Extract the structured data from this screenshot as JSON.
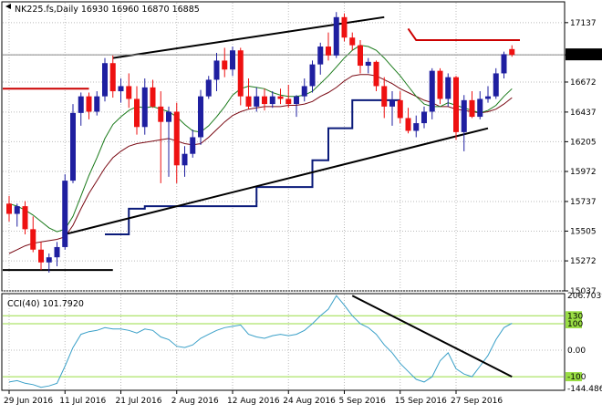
{
  "window": {
    "symbol_line": "NK225.fs,Daily  16930 16960 16870 16885",
    "timeframe": "Daily"
  },
  "price_axis": {
    "ticks": [
      "17137",
      "16885",
      "16672",
      "16437",
      "16205",
      "15972",
      "15737",
      "15505",
      "15272",
      "15037"
    ],
    "current_price_label": "16885"
  },
  "time_axis": {
    "labels": [
      "29 Jun 2016",
      "11 Jul 2016",
      "21 Jul 2016",
      "2 Aug 2016",
      "12 Aug 2016",
      "24 Aug 2016",
      "5 Sep 2016",
      "15 Sep 2016",
      "27 Sep 2016"
    ]
  },
  "indicator": {
    "title": "CCI(40) 101.7920",
    "ticks": [
      "206.7039",
      "130",
      "100",
      "0.00",
      "-100",
      "-144.486"
    ]
  },
  "colors": {
    "bull": "#1f1fa0",
    "bear": "#ee1111",
    "cci_line": "#3aa0c8",
    "level_line": "#99dd44",
    "slow_ma": "#7a0a14",
    "mid_ma": "#1a7a1a",
    "trail_stop": "#0a1a7a",
    "trend_line": "#000000",
    "resistance": "#cc0000"
  },
  "chart_data": {
    "type": "candlestick",
    "y_range": [
      15037,
      17300
    ],
    "candles": [
      [
        15720,
        15780,
        15580,
        15640
      ],
      [
        15640,
        15720,
        15540,
        15700
      ],
      [
        15700,
        15740,
        15480,
        15520
      ],
      [
        15520,
        15620,
        15340,
        15360
      ],
      [
        15360,
        15420,
        15200,
        15260
      ],
      [
        15260,
        15330,
        15180,
        15300
      ],
      [
        15300,
        15420,
        15230,
        15380
      ],
      [
        15380,
        15950,
        15360,
        15900
      ],
      [
        15900,
        16500,
        15880,
        16430
      ],
      [
        16430,
        16590,
        16330,
        16560
      ],
      [
        16560,
        16590,
        16380,
        16440
      ],
      [
        16440,
        16600,
        16410,
        16560
      ],
      [
        16560,
        16860,
        16520,
        16820
      ],
      [
        16820,
        16880,
        16550,
        16600
      ],
      [
        16600,
        16700,
        16510,
        16640
      ],
      [
        16640,
        16740,
        16470,
        16540
      ],
      [
        16540,
        16640,
        16260,
        16320
      ],
      [
        16320,
        16700,
        16260,
        16630
      ],
      [
        16630,
        16690,
        16470,
        16480
      ],
      [
        16480,
        16600,
        15880,
        16360
      ],
      [
        16360,
        16480,
        15930,
        16440
      ],
      [
        16440,
        16510,
        15880,
        16020
      ],
      [
        16020,
        16170,
        15930,
        16110
      ],
      [
        16110,
        16300,
        16080,
        16240
      ],
      [
        16240,
        16610,
        16180,
        16560
      ],
      [
        16560,
        16720,
        16540,
        16690
      ],
      [
        16690,
        16900,
        16600,
        16840
      ],
      [
        16840,
        16940,
        16710,
        16770
      ],
      [
        16770,
        16950,
        16720,
        16920
      ],
      [
        16920,
        16940,
        16490,
        16560
      ],
      [
        16560,
        16700,
        16460,
        16480
      ],
      [
        16480,
        16630,
        16440,
        16560
      ],
      [
        16560,
        16620,
        16450,
        16500
      ],
      [
        16500,
        16600,
        16470,
        16560
      ],
      [
        16560,
        16620,
        16500,
        16540
      ],
      [
        16540,
        16650,
        16470,
        16500
      ],
      [
        16500,
        16570,
        16400,
        16560
      ],
      [
        16560,
        16700,
        16520,
        16640
      ],
      [
        16640,
        16840,
        16590,
        16810
      ],
      [
        16810,
        16980,
        16730,
        16950
      ],
      [
        16950,
        17060,
        16840,
        16880
      ],
      [
        16880,
        17220,
        16860,
        17180
      ],
      [
        17180,
        17210,
        16990,
        17020
      ],
      [
        17020,
        17060,
        16920,
        16960
      ],
      [
        16960,
        17000,
        16740,
        16800
      ],
      [
        16800,
        16860,
        16740,
        16830
      ],
      [
        16830,
        16840,
        16600,
        16640
      ],
      [
        16640,
        16710,
        16390,
        16480
      ],
      [
        16480,
        16600,
        16330,
        16530
      ],
      [
        16530,
        16600,
        16350,
        16390
      ],
      [
        16390,
        16470,
        16270,
        16290
      ],
      [
        16290,
        16410,
        16240,
        16350
      ],
      [
        16350,
        16480,
        16310,
        16440
      ],
      [
        16440,
        16780,
        16380,
        16760
      ],
      [
        16760,
        16780,
        16500,
        16540
      ],
      [
        16540,
        16740,
        16480,
        16710
      ],
      [
        16710,
        16720,
        16220,
        16280
      ],
      [
        16280,
        16570,
        16130,
        16530
      ],
      [
        16530,
        16600,
        16390,
        16400
      ],
      [
        16400,
        16600,
        16380,
        16540
      ],
      [
        16540,
        16640,
        16510,
        16560
      ],
      [
        16560,
        16780,
        16540,
        16740
      ],
      [
        16740,
        16910,
        16700,
        16890
      ],
      [
        16930,
        16960,
        16870,
        16885
      ]
    ],
    "slow_ma": [
      15330,
      15360,
      15390,
      15410,
      15420,
      15430,
      15440,
      15460,
      15550,
      15680,
      15800,
      15900,
      16000,
      16080,
      16130,
      16170,
      16190,
      16200,
      16210,
      16220,
      16230,
      16210,
      16190,
      16180,
      16190,
      16240,
      16300,
      16360,
      16410,
      16440,
      16460,
      16470,
      16480,
      16480,
      16480,
      16490,
      16490,
      16500,
      16520,
      16560,
      16590,
      16630,
      16680,
      16720,
      16730,
      16730,
      16720,
      16690,
      16660,
      16620,
      16590,
      16560,
      16530,
      16510,
      16480,
      16480,
      16460,
      16450,
      16440,
      16430,
      16440,
      16460,
      16500,
      16550
    ],
    "mid_ma": [
      15720,
      15700,
      15670,
      15630,
      15580,
      15530,
      15500,
      15520,
      15620,
      15780,
      15940,
      16080,
      16230,
      16340,
      16400,
      16450,
      16480,
      16470,
      16480,
      16460,
      16440,
      16400,
      16340,
      16290,
      16280,
      16330,
      16400,
      16480,
      16570,
      16620,
      16640,
      16630,
      16620,
      16590,
      16570,
      16560,
      16560,
      16570,
      16600,
      16660,
      16720,
      16790,
      16860,
      16920,
      16960,
      16950,
      16920,
      16860,
      16790,
      16720,
      16640,
      16560,
      16500,
      16480,
      16480,
      16510,
      16490,
      16470,
      16450,
      16430,
      16450,
      16490,
      16560,
      16620
    ],
    "cci": [
      -120,
      -115,
      -125,
      -130,
      -140,
      -135,
      -125,
      -60,
      10,
      60,
      70,
      75,
      85,
      80,
      80,
      75,
      65,
      80,
      75,
      50,
      40,
      15,
      10,
      20,
      45,
      60,
      75,
      85,
      90,
      95,
      60,
      50,
      45,
      55,
      60,
      55,
      60,
      75,
      100,
      130,
      155,
      206,
      170,
      130,
      100,
      85,
      60,
      20,
      -10,
      -50,
      -80,
      -110,
      -120,
      -100,
      -40,
      -10,
      -70,
      -90,
      -100,
      -60,
      -20,
      40,
      85,
      101.792
    ],
    "levels": [
      130,
      100,
      0,
      -100
    ],
    "cci_range": [
      -144.486,
      206.7039
    ]
  }
}
